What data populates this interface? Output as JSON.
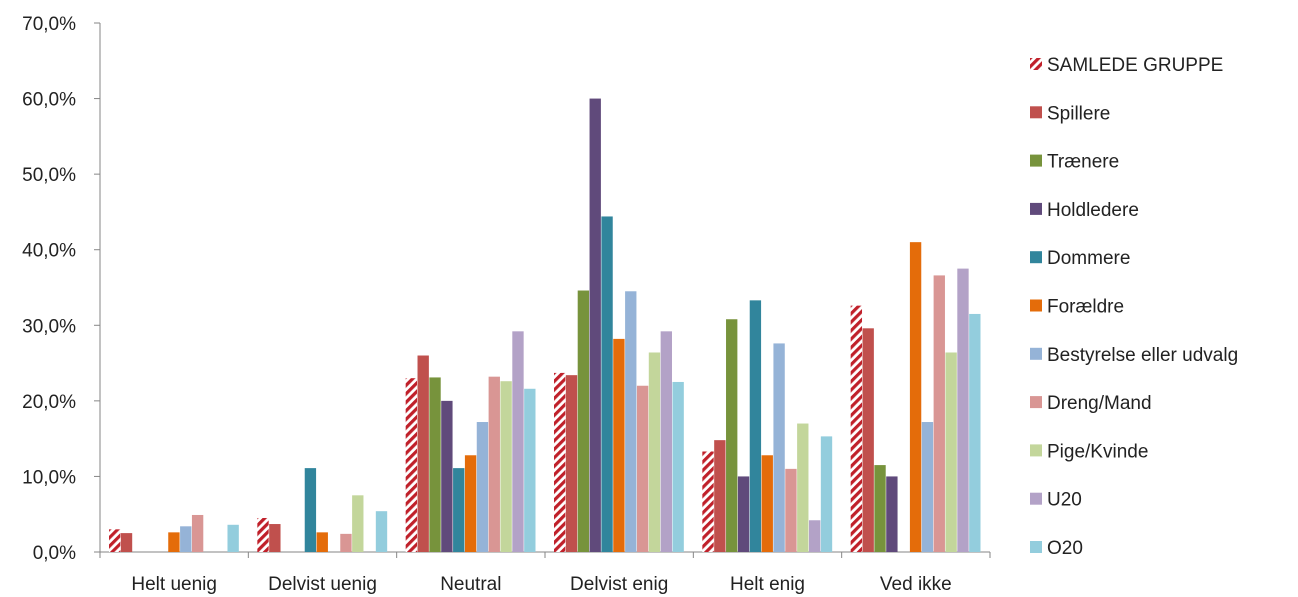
{
  "chart_data": {
    "type": "bar",
    "categories": [
      "Helt uenig",
      "Delvist uenig",
      "Neutral",
      "Delvist enig",
      "Helt enig",
      "Ved ikke"
    ],
    "ylim": [
      0,
      70
    ],
    "yticks": [
      "0,0%",
      "10,0%",
      "20,0%",
      "30,0%",
      "40,0%",
      "50,0%",
      "60,0%",
      "70,0%"
    ],
    "legend_position": "right",
    "series": [
      {
        "name": "SAMLEDE GRUPPE",
        "color": "#c0202a",
        "pattern": "hatched",
        "values": [
          3.0,
          4.5,
          23.0,
          23.7,
          13.3,
          32.6
        ]
      },
      {
        "name": "Spillere",
        "color": "#c0504d",
        "values": [
          2.5,
          3.7,
          26.0,
          23.4,
          14.8,
          29.6
        ]
      },
      {
        "name": "Trænere",
        "color": "#77933c",
        "values": [
          0,
          0,
          23.1,
          34.6,
          30.8,
          11.5
        ]
      },
      {
        "name": "Holdledere",
        "color": "#604a7b",
        "values": [
          0,
          0,
          20.0,
          60.0,
          10.0,
          10.0
        ]
      },
      {
        "name": "Dommere",
        "color": "#31859c",
        "values": [
          0,
          11.1,
          11.1,
          44.4,
          33.3,
          0
        ]
      },
      {
        "name": "Forældre",
        "color": "#e46c0a",
        "values": [
          2.6,
          2.6,
          12.8,
          28.2,
          12.8,
          41.0
        ]
      },
      {
        "name": "Bestyrelse eller udvalg",
        "color": "#95b3d7",
        "values": [
          3.4,
          0,
          17.2,
          34.5,
          27.6,
          17.2
        ]
      },
      {
        "name": "Dreng/Mand",
        "color": "#d99694",
        "values": [
          4.9,
          2.4,
          23.2,
          22.0,
          11.0,
          36.6
        ]
      },
      {
        "name": "Pige/Kvinde",
        "color": "#c3d69b",
        "values": [
          0,
          7.5,
          22.6,
          26.4,
          17.0,
          26.4
        ]
      },
      {
        "name": "U20",
        "color": "#b3a2c7",
        "values": [
          0,
          0,
          29.2,
          29.2,
          4.2,
          37.5
        ]
      },
      {
        "name": "O20",
        "color": "#93cddd",
        "values": [
          3.6,
          5.4,
          21.6,
          22.5,
          15.3,
          31.5
        ]
      }
    ]
  }
}
